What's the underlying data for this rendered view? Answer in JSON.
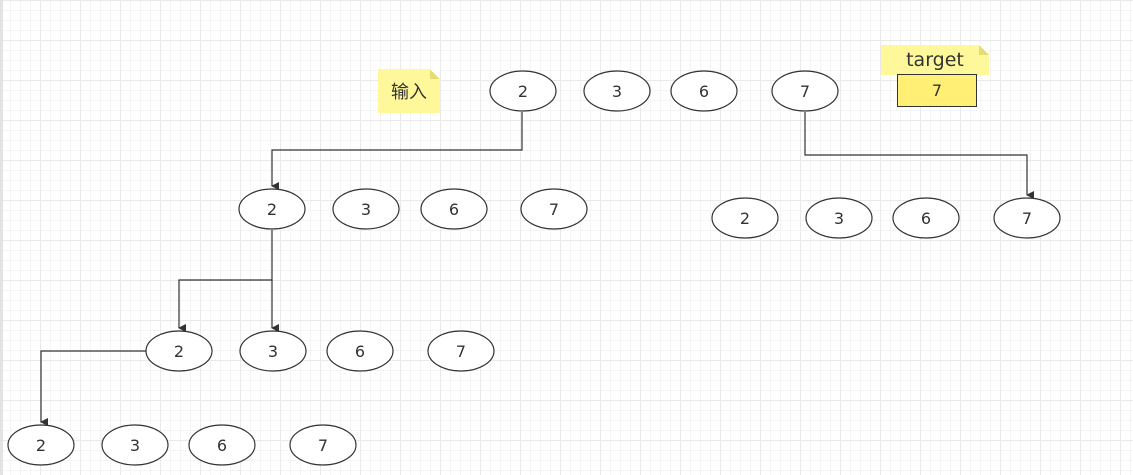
{
  "notes": {
    "input_label": "输入",
    "target_label": "target",
    "target_value": "7"
  },
  "candidates": [
    "2",
    "3",
    "6",
    "7"
  ],
  "rows": {
    "root": [
      "2",
      "3",
      "6",
      "7"
    ],
    "branch_a": [
      "2",
      "3",
      "6",
      "7"
    ],
    "branch_b": [
      "2",
      "3",
      "6",
      "7"
    ],
    "branch_c": [
      "2",
      "3",
      "6",
      "7"
    ],
    "branch_d": [
      "2",
      "3",
      "6",
      "7"
    ]
  },
  "colors": {
    "note_fill": "#fff89b",
    "target_fill": "#ffef75",
    "stroke": "#333333",
    "grid": "#e9e9e9"
  }
}
